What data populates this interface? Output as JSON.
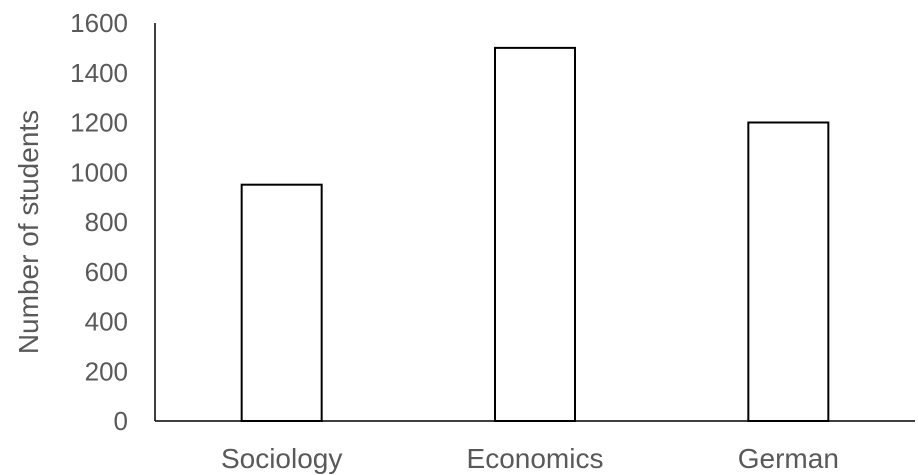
{
  "chart_data": {
    "type": "bar",
    "title": "",
    "xlabel": "",
    "ylabel": "Number of students",
    "categories": [
      "Sociology",
      "Economics",
      "German"
    ],
    "values": [
      950,
      1500,
      1200
    ],
    "ylim": [
      0,
      1600
    ],
    "yticks": [
      0,
      200,
      400,
      600,
      800,
      1000,
      1200,
      1400,
      1600
    ],
    "grid": false,
    "legend": "none",
    "bar_fill": "#ffffff",
    "bar_stroke": "#000000",
    "text_color": "#595959"
  }
}
